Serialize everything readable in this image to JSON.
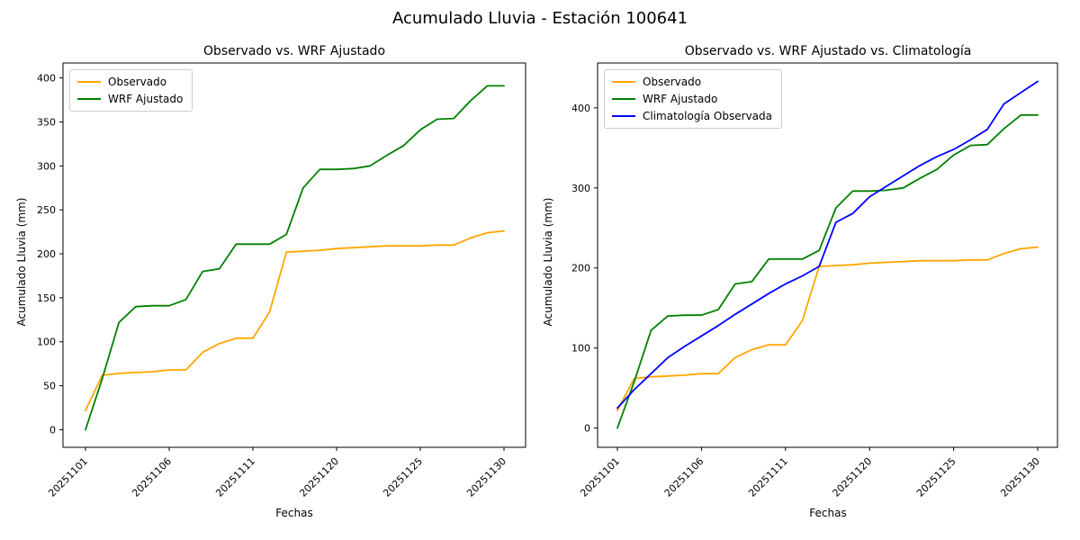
{
  "suptitle": "Acumulado Lluvia - Estación 100641",
  "chart_data": [
    {
      "type": "line",
      "title": "Observado vs. WRF Ajustado",
      "xlabel": "Fechas",
      "ylabel": "Acumulado Lluvia (mm)",
      "x": [
        "20251101",
        "20251102",
        "20251103",
        "20251104",
        "20251105",
        "20251106",
        "20251107",
        "20251108",
        "20251109",
        "20251110",
        "20251111",
        "20251116",
        "20251117",
        "20251118",
        "20251119",
        "20251120",
        "20251121",
        "20251122",
        "20251123",
        "20251124",
        "20251125",
        "20251126",
        "20251127",
        "20251128",
        "20251129",
        "20251130"
      ],
      "xtick_labels": [
        "20251101",
        "20251106",
        "20251111",
        "20251120",
        "20251125",
        "20251130"
      ],
      "xtick_positions": [
        0,
        5,
        10,
        15,
        20,
        25
      ],
      "yticks": [
        0,
        50,
        100,
        150,
        200,
        250,
        300,
        350,
        400
      ],
      "ylim": [
        -20,
        417
      ],
      "grid": false,
      "legend_position": "upper left",
      "series": [
        {
          "name": "Observado",
          "color": "#FFA500",
          "values": [
            22,
            62,
            64,
            65,
            66,
            68,
            68,
            88,
            98,
            104,
            104,
            134,
            202,
            203,
            204,
            206,
            207,
            208,
            209,
            209,
            209,
            210,
            210,
            218,
            224,
            226
          ]
        },
        {
          "name": "WRF Ajustado",
          "color": "#008000",
          "values": [
            0,
            58,
            122,
            140,
            141,
            141,
            148,
            180,
            183,
            211,
            211,
            211,
            222,
            275,
            296,
            296,
            297,
            300,
            312,
            323,
            341,
            353,
            354,
            374,
            391,
            391
          ]
        }
      ]
    },
    {
      "type": "line",
      "title": "Observado vs. WRF Ajustado vs. Climatología",
      "xlabel": "Fechas",
      "ylabel": "Acumulado Lluvia (mm)",
      "x": [
        "20251101",
        "20251102",
        "20251103",
        "20251104",
        "20251105",
        "20251106",
        "20251107",
        "20251108",
        "20251109",
        "20251110",
        "20251111",
        "20251116",
        "20251117",
        "20251118",
        "20251119",
        "20251120",
        "20251121",
        "20251122",
        "20251123",
        "20251124",
        "20251125",
        "20251126",
        "20251127",
        "20251128",
        "20251129",
        "20251130"
      ],
      "xtick_labels": [
        "20251101",
        "20251106",
        "20251111",
        "20251120",
        "20251125",
        "20251130"
      ],
      "xtick_positions": [
        0,
        5,
        10,
        15,
        20,
        25
      ],
      "yticks": [
        0,
        100,
        200,
        300,
        400
      ],
      "ylim": [
        -24,
        456
      ],
      "grid": false,
      "legend_position": "upper left",
      "series": [
        {
          "name": "Observado",
          "color": "#FFA500",
          "values": [
            22,
            62,
            64,
            65,
            66,
            68,
            68,
            88,
            98,
            104,
            104,
            134,
            202,
            203,
            204,
            206,
            207,
            208,
            209,
            209,
            209,
            210,
            210,
            218,
            224,
            226
          ]
        },
        {
          "name": "WRF Ajustado",
          "color": "#008000",
          "values": [
            0,
            58,
            122,
            140,
            141,
            141,
            148,
            180,
            183,
            211,
            211,
            211,
            222,
            275,
            296,
            296,
            297,
            300,
            312,
            323,
            341,
            353,
            354,
            374,
            391,
            391
          ]
        },
        {
          "name": "Climatología Observada",
          "color": "#0000FF",
          "values": [
            25,
            48,
            68,
            88,
            102,
            115,
            128,
            142,
            155,
            168,
            180,
            190,
            202,
            257,
            268,
            289,
            302,
            315,
            328,
            339,
            348,
            360,
            373,
            405,
            419,
            433
          ]
        }
      ]
    }
  ]
}
